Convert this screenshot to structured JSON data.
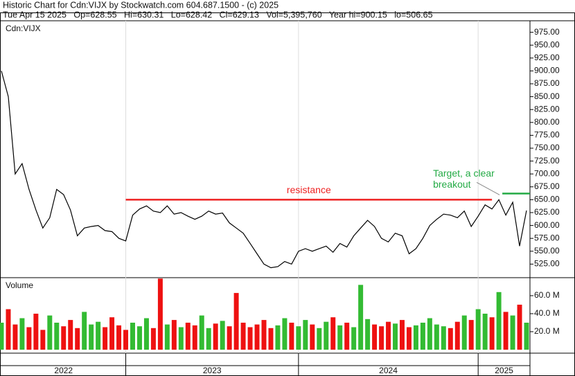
{
  "chart_data": {
    "type": "line",
    "header": [
      "Historic Chart for Cdn:VIJX by Stockwatch.com 604.687.1500 - (c) 2025",
      "Tue Apr 15 2025   Op=628.55   Hi=630.31   Lo=628.42   Cl=629.13   Vol=5,395,760   Year hi=900.15   lo=506.65"
    ],
    "symbol_label": "Cdn:VIJX",
    "xlim": [
      0,
      76.5
    ],
    "ylim": [
      500,
      1000
    ],
    "yticks": [
      {
        "value": 525,
        "label": "525.00"
      },
      {
        "value": 550,
        "label": "550.00"
      },
      {
        "value": 575,
        "label": "575.00"
      },
      {
        "value": 600,
        "label": "600.00"
      },
      {
        "value": 625,
        "label": "625.00"
      },
      {
        "value": 650,
        "label": "650.00"
      },
      {
        "value": 675,
        "label": "675.00"
      },
      {
        "value": 700,
        "label": "700.00"
      },
      {
        "value": 725,
        "label": "725.00"
      },
      {
        "value": 750,
        "label": "750.00"
      },
      {
        "value": 775,
        "label": "775.00"
      },
      {
        "value": 800,
        "label": "800.00"
      },
      {
        "value": 825,
        "label": "825.00"
      },
      {
        "value": 850,
        "label": "850.00"
      },
      {
        "value": 875,
        "label": "875.00"
      },
      {
        "value": 900,
        "label": "900.00"
      },
      {
        "value": 925,
        "label": "925.00"
      },
      {
        "value": 950,
        "label": "950.00"
      },
      {
        "value": 975,
        "label": "975.00"
      }
    ],
    "price": {
      "color": "#000000",
      "values": [
        900,
        850,
        700,
        720,
        670,
        630,
        595,
        615,
        670,
        660,
        630,
        580,
        595,
        598,
        600,
        590,
        588,
        575,
        570,
        620,
        632,
        638,
        628,
        625,
        638,
        622,
        625,
        618,
        612,
        618,
        628,
        622,
        624,
        605,
        595,
        585,
        565,
        545,
        525,
        518,
        520,
        530,
        525,
        550,
        555,
        550,
        555,
        560,
        548,
        565,
        558,
        580,
        595,
        610,
        598,
        575,
        568,
        585,
        580,
        545,
        555,
        575,
        600,
        612,
        622,
        620,
        615,
        628,
        598,
        618,
        640,
        632,
        650,
        620,
        645,
        560,
        629
      ]
    },
    "volume": {
      "label": "Volume",
      "ylim": [
        0,
        80
      ],
      "yticks": [
        {
          "value": 20,
          "label": "20.0 M"
        },
        {
          "value": 40,
          "label": "40.0 M"
        },
        {
          "value": 60,
          "label": "60.0 M"
        }
      ],
      "up_color": "#33bb33",
      "down_color": "#ee1111",
      "values": [
        30,
        45,
        28,
        35,
        25,
        40,
        22,
        38,
        30,
        26,
        33,
        24,
        42,
        28,
        31,
        25,
        36,
        27,
        22,
        30,
        26,
        35,
        24,
        79,
        28,
        33,
        25,
        30,
        27,
        38,
        24,
        29,
        32,
        26,
        63,
        30,
        25,
        28,
        33,
        24,
        27,
        35,
        30,
        26,
        33,
        28,
        24,
        31,
        36,
        27,
        30,
        25,
        72,
        34,
        28,
        26,
        31,
        29,
        33,
        25,
        27,
        30,
        35,
        28,
        26,
        24,
        31,
        38,
        33,
        45,
        40,
        36,
        64,
        42,
        38,
        50,
        30
      ]
    },
    "years": [
      "2022",
      "2023",
      "2024",
      "2025"
    ],
    "year_starts": [
      18,
      43,
      69
    ],
    "resistance": {
      "label": "resistance",
      "value": 650,
      "from": 18,
      "to": 71,
      "color": "#ee2222"
    },
    "target": {
      "label": [
        "Target, a clear",
        "breakout"
      ],
      "value": 662,
      "from": 72.5,
      "to": 76.5,
      "color": "#22aa44"
    }
  }
}
